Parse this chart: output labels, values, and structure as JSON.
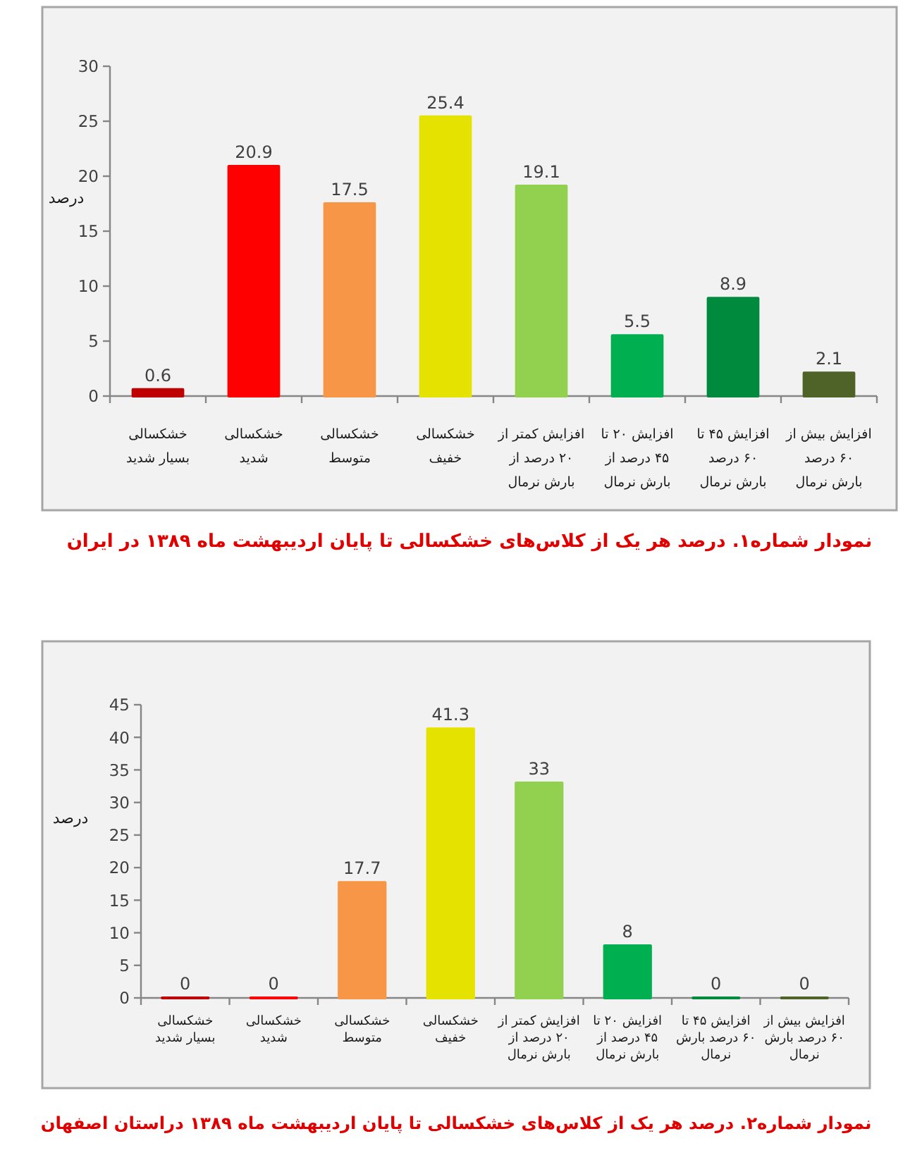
{
  "chart_data": [
    {
      "type": "bar",
      "title": "نمودار شماره۱. درصد هر یک از کلاس‌های خشکسالی تا پایان اردیبهشت ماه ۱۳۸۹ در ایران",
      "ylabel": "درصد",
      "categories": [
        "خشکسالی\nبسیار شدید",
        "خشکسالی\nشدید",
        "خشکسالی\nمتوسط",
        "خشکسالی\nخفیف",
        "افزایش کمتر از\n۲۰ درصد از\nبارش نرمال",
        "افزایش ۲۰ تا\n۴۵ درصد از\nبارش نرمال",
        "افزایش ۴۵ تا\n۶۰ درصد\nبارش نرمال",
        "افزایش بیش از\n۶۰ درصد\nبارش نرمال"
      ],
      "values": [
        0.6,
        20.9,
        17.5,
        25.4,
        19.1,
        5.5,
        8.9,
        2.1
      ],
      "colors": [
        "#c00000",
        "#ff0000",
        "#f79646",
        "#e6e200",
        "#92d050",
        "#00b050",
        "#008a3e",
        "#4f6228"
      ],
      "ylim": [
        0,
        30
      ],
      "yticks": [
        0,
        5,
        10,
        15,
        20,
        25,
        30
      ],
      "data_labels": true
    },
    {
      "type": "bar",
      "title": "نمودار شماره۲. درصد هر یک از کلاس‌های خشکسالی تا پایان اردیبهشت ماه ۱۳۸۹ دراستان اصفهان",
      "ylabel": "درصد",
      "categories": [
        "خشکسالی بسیار شدید",
        "خشکسالی شدید",
        "خشکسالی متوسط",
        "خشکسالی خفیف",
        "افزایش کمتر از ۲۰ درصد از بارش نرمال",
        "افزایش ۲۰ تا ۴۵ درصد از بارش نرمال",
        "افزایش ۴۵ تا ۶۰ درصد بارش نرمال",
        "افزایش بیش از ۶۰ درصد بارش نرمال"
      ],
      "values": [
        0,
        0,
        17.7,
        41.3,
        33,
        8,
        0,
        0
      ],
      "colors": [
        "#c00000",
        "#ff0000",
        "#f79646",
        "#e6e200",
        "#92d050",
        "#00b050",
        "#008a3e",
        "#4f6228"
      ],
      "ylim": [
        0,
        45
      ],
      "yticks": [
        0,
        5,
        10,
        15,
        20,
        25,
        30,
        35,
        40,
        45
      ],
      "data_labels": true
    }
  ]
}
